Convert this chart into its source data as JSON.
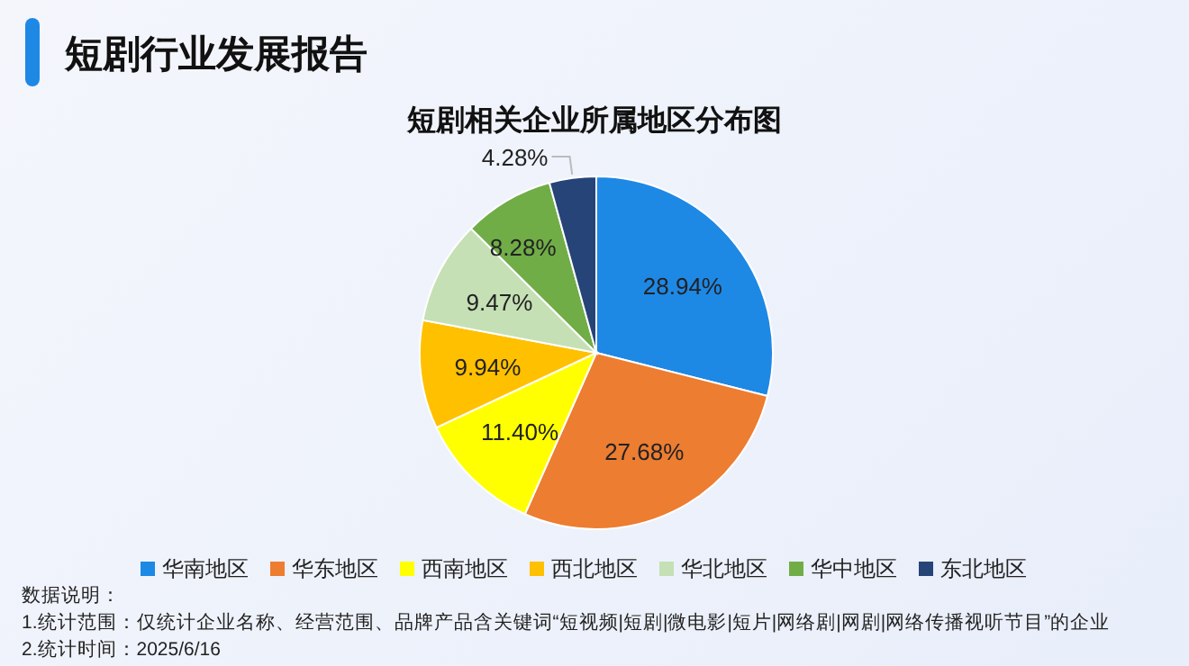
{
  "chart_data": {
    "type": "pie",
    "title": "短剧行业发展报告",
    "subtitle": "短剧相关企业所属地区分布图",
    "categories": [
      "华南地区",
      "华东地区",
      "西南地区",
      "西北地区",
      "华北地区",
      "华中地区",
      "东北地区"
    ],
    "values": [
      28.94,
      27.68,
      11.4,
      9.94,
      9.47,
      8.28,
      4.28
    ],
    "value_labels": [
      "28.94%",
      "27.68%",
      "11.40%",
      "9.94%",
      "9.47%",
      "8.28%",
      "4.28%"
    ],
    "colors": [
      "#1e88e5",
      "#ed7d31",
      "#ffff00",
      "#ffc000",
      "#c5e0b4",
      "#70ad47",
      "#264478"
    ],
    "legend": "bottom",
    "annotations": [
      "数据说明：",
      "1.统计范围：仅统计企业名称、经营范围、品牌产品含关键词“短视频|短剧|微电影|短片|网络剧|网剧|网络传播视听节目”的企业",
      "2.统计时间：2025/6/16"
    ]
  }
}
